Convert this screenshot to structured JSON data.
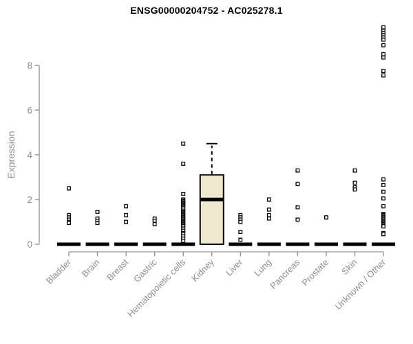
{
  "colors": {
    "box_fill": "#f0e9d0",
    "box_stroke": "#000000",
    "bar": "#000000",
    "point_fill": "#ffffff",
    "point_stroke": "#000000",
    "axis": "#8f8f8f",
    "tick_label": "#8f8f8f",
    "title": "#000000"
  },
  "chart_data": {
    "type": "boxplot",
    "title": "ENSG00000204752 - AC025278.1",
    "ylabel": "Expression",
    "xlabel": "",
    "ylim": [
      0,
      9.8
    ],
    "yticks": [
      0,
      2,
      4,
      6,
      8
    ],
    "grid": false,
    "legend": "none",
    "categories": [
      "Bladder",
      "Brain",
      "Breast",
      "Gastric",
      "Hematopoietic cells",
      "Kidney",
      "Liver",
      "Lung",
      "Pancreas",
      "Prostate",
      "Skin",
      "Unknown / Other"
    ],
    "boxes": [
      {
        "category": "Bladder",
        "min": 0,
        "q1": 0,
        "median": 0,
        "q3": 0,
        "max": 0,
        "outliers": [
          2.5,
          1.3,
          1.2,
          1.1,
          1.0,
          0.95
        ]
      },
      {
        "category": "Brain",
        "min": 0,
        "q1": 0,
        "median": 0,
        "q3": 0,
        "max": 0,
        "outliers": [
          1.45,
          1.15,
          1.05,
          0.95
        ]
      },
      {
        "category": "Breast",
        "min": 0,
        "q1": 0,
        "median": 0,
        "q3": 0,
        "max": 0,
        "outliers": [
          1.7,
          1.3,
          1.0
        ]
      },
      {
        "category": "Gastric",
        "min": 0,
        "q1": 0,
        "median": 0,
        "q3": 0,
        "max": 0,
        "outliers": [
          1.15,
          1.05,
          0.9
        ]
      },
      {
        "category": "Hematopoietic cells",
        "min": 0,
        "q1": 0,
        "median": 0,
        "q3": 0,
        "max": 0,
        "outliers": [
          4.5,
          3.6,
          2.25,
          2.0,
          1.95,
          1.9,
          1.85,
          1.8,
          1.75,
          1.7,
          1.65,
          1.6,
          1.5,
          1.45,
          1.4,
          1.35,
          1.3,
          1.25,
          1.2,
          1.15,
          1.1,
          1.05,
          1.0,
          0.95,
          0.9,
          0.85,
          0.8,
          0.7,
          0.6,
          0.5,
          0.45,
          0.35,
          0.25,
          0.15
        ]
      },
      {
        "category": "Kidney",
        "min": 0,
        "q1": 0,
        "median": 2.0,
        "q3": 3.1,
        "max": 4.5,
        "outliers": []
      },
      {
        "category": "Liver",
        "min": 0,
        "q1": 0,
        "median": 0,
        "q3": 0,
        "max": 0,
        "outliers": [
          1.3,
          1.2,
          1.1,
          1.0,
          0.55,
          0.2
        ]
      },
      {
        "category": "Lung",
        "min": 0,
        "q1": 0,
        "median": 0,
        "q3": 0,
        "max": 0,
        "outliers": [
          2.0,
          1.55,
          1.3,
          1.15
        ]
      },
      {
        "category": "Pancreas",
        "min": 0,
        "q1": 0,
        "median": 0,
        "q3": 0,
        "max": 0,
        "outliers": [
          3.3,
          2.7,
          1.65,
          1.1
        ]
      },
      {
        "category": "Prostate",
        "min": 0,
        "q1": 0,
        "median": 0,
        "q3": 0,
        "max": 0,
        "outliers": [
          1.2
        ]
      },
      {
        "category": "Skin",
        "min": 0,
        "q1": 0,
        "median": 0,
        "q3": 0,
        "max": 0,
        "outliers": [
          3.3,
          2.75,
          2.55,
          2.45
        ]
      },
      {
        "category": "Unknown / Other",
        "min": 0,
        "q1": 0,
        "median": 0,
        "q3": 0,
        "max": 0,
        "outliers": [
          9.7,
          9.55,
          9.45,
          9.35,
          9.25,
          9.15,
          8.9,
          8.5,
          8.35,
          7.75,
          7.55,
          2.9,
          2.65,
          2.35,
          2.05,
          1.7,
          1.35,
          1.3,
          1.25,
          1.2,
          1.15,
          1.1,
          1.05,
          1.0,
          0.95,
          0.9,
          0.85,
          0.8,
          0.5,
          0.45
        ]
      }
    ]
  }
}
